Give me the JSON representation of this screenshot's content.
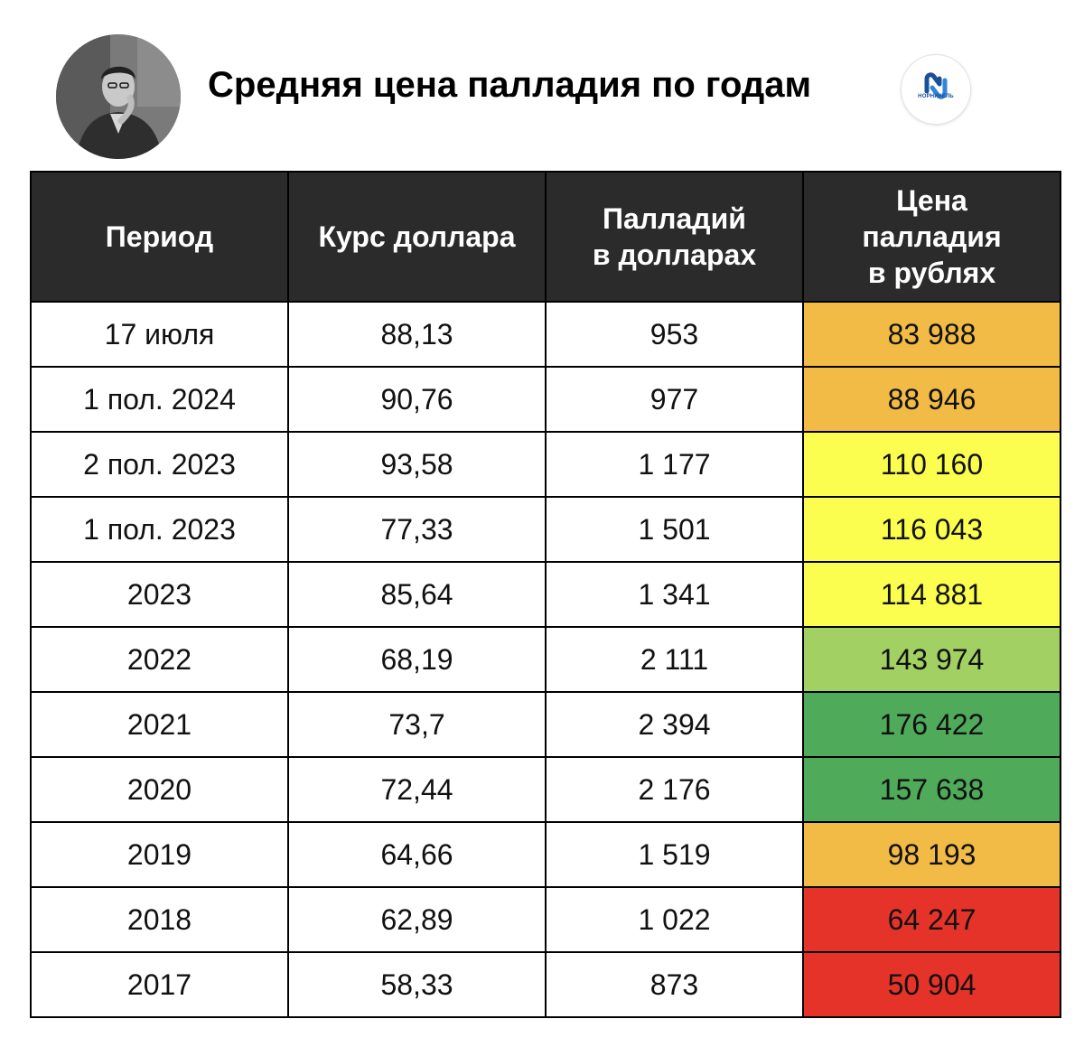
{
  "header": {
    "title": "Средняя цена палладия по годам",
    "logo_text": "НОРНИКЕЛЬ"
  },
  "colors": {
    "header_bg": "#2b2b2b",
    "orange": "#f2bb45",
    "yellow": "#fbfd4f",
    "light_green": "#a3d062",
    "green": "#4fab5a",
    "red": "#e6332a"
  },
  "table": {
    "columns": [
      "Период",
      "Курс доллара",
      "Палладий\nв долларах",
      "Цена\nпалладия\nв рублях"
    ],
    "rows": [
      {
        "period": "17 июля",
        "usd_rate": "88,13",
        "usd_price": "953",
        "rub_price": "83 988",
        "color": "#f2bb45"
      },
      {
        "period": "1 пол. 2024",
        "usd_rate": "90,76",
        "usd_price": "977",
        "rub_price": "88 946",
        "color": "#f2bb45"
      },
      {
        "period": "2 пол. 2023",
        "usd_rate": "93,58",
        "usd_price": "1 177",
        "rub_price": "110 160",
        "color": "#fbfd4f"
      },
      {
        "period": "1 пол. 2023",
        "usd_rate": "77,33",
        "usd_price": "1 501",
        "rub_price": "116 043",
        "color": "#fbfd4f"
      },
      {
        "period": "2023",
        "usd_rate": "85,64",
        "usd_price": "1 341",
        "rub_price": "114 881",
        "color": "#fbfd4f"
      },
      {
        "period": "2022",
        "usd_rate": "68,19",
        "usd_price": "2 111",
        "rub_price": "143 974",
        "color": "#a3d062"
      },
      {
        "period": "2021",
        "usd_rate": "73,7",
        "usd_price": "2 394",
        "rub_price": "176 422",
        "color": "#4fab5a"
      },
      {
        "period": "2020",
        "usd_rate": "72,44",
        "usd_price": "2 176",
        "rub_price": "157 638",
        "color": "#4fab5a"
      },
      {
        "period": "2019",
        "usd_rate": "64,66",
        "usd_price": "1 519",
        "rub_price": "98 193",
        "color": "#f2bb45"
      },
      {
        "period": "2018",
        "usd_rate": "62,89",
        "usd_price": "1 022",
        "rub_price": "64 247",
        "color": "#e6332a"
      },
      {
        "period": "2017",
        "usd_rate": "58,33",
        "usd_price": "873",
        "rub_price": "50 904",
        "color": "#e6332a"
      }
    ]
  }
}
